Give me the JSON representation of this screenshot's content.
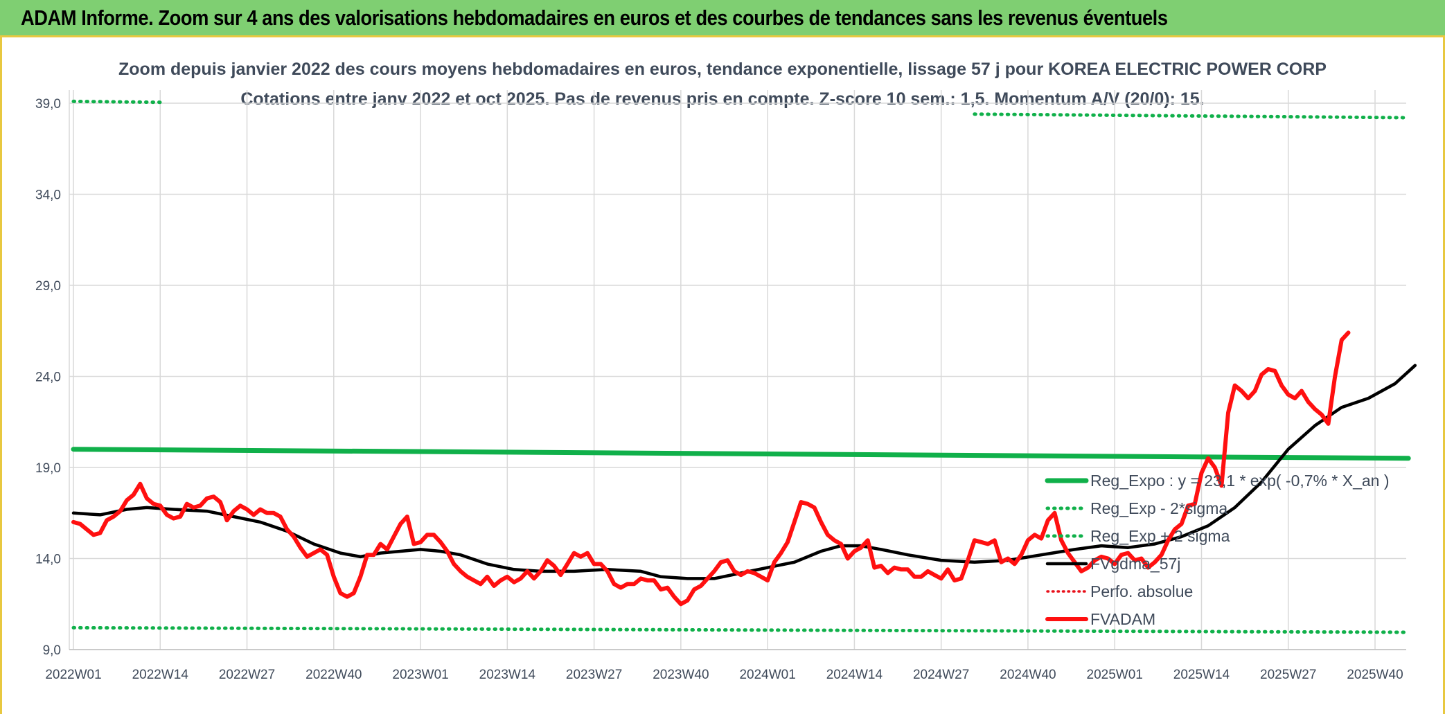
{
  "banner": {
    "title": "ADAM Informe. Zoom sur 4 ans des valorisations hebdomadaires en euros et des courbes de tendances sans les revenus éventuels"
  },
  "colors": {
    "banner_bg": "#7fcf72",
    "reg_expo": "#10b04a",
    "sigma": "#10b04a",
    "fvgdma": "#000000",
    "perfo": "#e8101a",
    "fvadam": "#ff1010"
  },
  "chart_data": {
    "type": "line",
    "title": "Zoom depuis janvier 2022 des cours moyens hebdomadaires en euros, tendance exponentielle, lissage 57 j pour KOREA ELECTRIC POWER CORP",
    "subtitle": "Cotations entre janv 2022 et oct 2025. Pas de revenus pris en compte. Z-score 10 sem.: 1,5. Momentum A/V (20/0): 15.",
    "xlabel": "",
    "ylabel": "",
    "ylim": [
      9.0,
      40.0
    ],
    "yticks": [
      "9,0",
      "14,0",
      "19,0",
      "24,0",
      "29,0",
      "34,0",
      "39,0"
    ],
    "yticks_values": [
      9,
      14,
      19,
      24,
      29,
      34,
      39
    ],
    "xticks": [
      "2022W01",
      "2022W14",
      "2022W27",
      "2022W40",
      "2023W01",
      "2023W14",
      "2023W27",
      "2023W40",
      "2024W01",
      "2024W14",
      "2024W27",
      "2024W40",
      "2025W01",
      "2025W14",
      "2025W27",
      "2025W40"
    ],
    "xticks_index": [
      0,
      13,
      26,
      39,
      52,
      65,
      78,
      91,
      104,
      117,
      130,
      143,
      156,
      169,
      182,
      195
    ],
    "n_weeks": 201,
    "grid": true,
    "legend_position": "bottom-right",
    "series": [
      {
        "name": "Reg_Expo : y = 23,1 * exp( -0,7% *  X_an )",
        "style": "solid-thick",
        "points": [
          [
            0,
            20.0
          ],
          [
            200,
            19.5
          ]
        ]
      },
      {
        "name": "Reg_Exp - 2*sigma",
        "style": "dotted",
        "points": [
          [
            0,
            10.2
          ],
          [
            200,
            9.95
          ]
        ]
      },
      {
        "name": "Reg_Exp + 2 sigma",
        "style": "dotted",
        "segments": [
          [
            [
              0,
              39.1
            ],
            [
              13,
              39.05
            ]
          ],
          [
            [
              135,
              38.4
            ],
            [
              200,
              38.2
            ]
          ]
        ]
      },
      {
        "name": "FVgdma_57j",
        "style": "solid",
        "points": [
          [
            0,
            16.5
          ],
          [
            4,
            16.4
          ],
          [
            8,
            16.7
          ],
          [
            11,
            16.8
          ],
          [
            15,
            16.7
          ],
          [
            20,
            16.6
          ],
          [
            24,
            16.3
          ],
          [
            28,
            16.0
          ],
          [
            32,
            15.5
          ],
          [
            36,
            14.8
          ],
          [
            40,
            14.3
          ],
          [
            43,
            14.1
          ],
          [
            46,
            14.3
          ],
          [
            52,
            14.5
          ],
          [
            55,
            14.4
          ],
          [
            58,
            14.2
          ],
          [
            62,
            13.7
          ],
          [
            66,
            13.4
          ],
          [
            70,
            13.3
          ],
          [
            75,
            13.3
          ],
          [
            80,
            13.4
          ],
          [
            85,
            13.3
          ],
          [
            88,
            13.0
          ],
          [
            92,
            12.9
          ],
          [
            96,
            12.9
          ],
          [
            100,
            13.2
          ],
          [
            104,
            13.5
          ],
          [
            108,
            13.8
          ],
          [
            112,
            14.4
          ],
          [
            115,
            14.7
          ],
          [
            118,
            14.7
          ],
          [
            121,
            14.5
          ],
          [
            125,
            14.2
          ],
          [
            130,
            13.9
          ],
          [
            135,
            13.8
          ],
          [
            140,
            13.9
          ],
          [
            145,
            14.2
          ],
          [
            150,
            14.5
          ],
          [
            154,
            14.7
          ],
          [
            158,
            14.6
          ],
          [
            162,
            14.8
          ],
          [
            166,
            15.2
          ],
          [
            170,
            15.8
          ],
          [
            174,
            16.8
          ],
          [
            178,
            18.2
          ],
          [
            182,
            20.0
          ],
          [
            186,
            21.3
          ],
          [
            190,
            22.3
          ],
          [
            194,
            22.8
          ],
          [
            198,
            23.6
          ],
          [
            201,
            24.6
          ]
        ]
      },
      {
        "name": "Perfo. absolue",
        "style": "dotted",
        "points": []
      },
      {
        "name": "FVADAM",
        "style": "solid-thick",
        "points": [
          [
            0,
            16.0
          ],
          [
            1,
            15.9
          ],
          [
            2,
            15.6
          ],
          [
            3,
            15.3
          ],
          [
            4,
            15.4
          ],
          [
            5,
            16.1
          ],
          [
            6,
            16.3
          ],
          [
            7,
            16.6
          ],
          [
            8,
            17.2
          ],
          [
            9,
            17.5
          ],
          [
            10,
            18.1
          ],
          [
            11,
            17.3
          ],
          [
            12,
            17.0
          ],
          [
            13,
            16.9
          ],
          [
            14,
            16.4
          ],
          [
            15,
            16.2
          ],
          [
            16,
            16.3
          ],
          [
            17,
            17.0
          ],
          [
            18,
            16.8
          ],
          [
            19,
            16.9
          ],
          [
            20,
            17.3
          ],
          [
            21,
            17.4
          ],
          [
            22,
            17.1
          ],
          [
            23,
            16.1
          ],
          [
            24,
            16.6
          ],
          [
            25,
            16.9
          ],
          [
            26,
            16.7
          ],
          [
            27,
            16.4
          ],
          [
            28,
            16.7
          ],
          [
            29,
            16.5
          ],
          [
            30,
            16.5
          ],
          [
            31,
            16.3
          ],
          [
            32,
            15.6
          ],
          [
            33,
            15.2
          ],
          [
            34,
            14.6
          ],
          [
            35,
            14.1
          ],
          [
            36,
            14.3
          ],
          [
            37,
            14.5
          ],
          [
            38,
            14.2
          ],
          [
            39,
            13.0
          ],
          [
            40,
            12.1
          ],
          [
            41,
            11.9
          ],
          [
            42,
            12.1
          ],
          [
            43,
            13.0
          ],
          [
            44,
            14.2
          ],
          [
            45,
            14.2
          ],
          [
            46,
            14.8
          ],
          [
            47,
            14.5
          ],
          [
            48,
            15.2
          ],
          [
            49,
            15.9
          ],
          [
            50,
            16.3
          ],
          [
            51,
            14.8
          ],
          [
            52,
            14.9
          ],
          [
            53,
            15.3
          ],
          [
            54,
            15.3
          ],
          [
            55,
            14.9
          ],
          [
            56,
            14.4
          ],
          [
            57,
            13.7
          ],
          [
            58,
            13.3
          ],
          [
            59,
            13.0
          ],
          [
            60,
            12.8
          ],
          [
            61,
            12.6
          ],
          [
            62,
            13.0
          ],
          [
            63,
            12.5
          ],
          [
            64,
            12.8
          ],
          [
            65,
            13.0
          ],
          [
            66,
            12.7
          ],
          [
            67,
            12.9
          ],
          [
            68,
            13.3
          ],
          [
            69,
            12.9
          ],
          [
            70,
            13.3
          ],
          [
            71,
            13.9
          ],
          [
            72,
            13.6
          ],
          [
            73,
            13.1
          ],
          [
            74,
            13.7
          ],
          [
            75,
            14.3
          ],
          [
            76,
            14.1
          ],
          [
            77,
            14.3
          ],
          [
            78,
            13.7
          ],
          [
            79,
            13.7
          ],
          [
            80,
            13.3
          ],
          [
            81,
            12.6
          ],
          [
            82,
            12.4
          ],
          [
            83,
            12.6
          ],
          [
            84,
            12.6
          ],
          [
            85,
            12.9
          ],
          [
            86,
            12.8
          ],
          [
            87,
            12.8
          ],
          [
            88,
            12.3
          ],
          [
            89,
            12.4
          ],
          [
            90,
            11.9
          ],
          [
            91,
            11.5
          ],
          [
            92,
            11.7
          ],
          [
            93,
            12.3
          ],
          [
            94,
            12.5
          ],
          [
            95,
            12.9
          ],
          [
            96,
            13.3
          ],
          [
            97,
            13.8
          ],
          [
            98,
            13.9
          ],
          [
            99,
            13.3
          ],
          [
            100,
            13.1
          ],
          [
            101,
            13.3
          ],
          [
            102,
            13.2
          ],
          [
            103,
            13.0
          ],
          [
            104,
            12.8
          ],
          [
            105,
            13.8
          ],
          [
            106,
            14.3
          ],
          [
            107,
            14.9
          ],
          [
            108,
            16.0
          ],
          [
            109,
            17.1
          ],
          [
            110,
            17.0
          ],
          [
            111,
            16.8
          ],
          [
            112,
            16.0
          ],
          [
            113,
            15.3
          ],
          [
            114,
            15.0
          ],
          [
            115,
            14.8
          ],
          [
            116,
            14.0
          ],
          [
            117,
            14.4
          ],
          [
            118,
            14.6
          ],
          [
            119,
            15.0
          ],
          [
            120,
            13.5
          ],
          [
            121,
            13.6
          ],
          [
            122,
            13.2
          ],
          [
            123,
            13.5
          ],
          [
            124,
            13.4
          ],
          [
            125,
            13.4
          ],
          [
            126,
            13.0
          ],
          [
            127,
            13.0
          ],
          [
            128,
            13.3
          ],
          [
            129,
            13.1
          ],
          [
            130,
            12.9
          ],
          [
            131,
            13.4
          ],
          [
            132,
            12.8
          ],
          [
            133,
            12.9
          ],
          [
            134,
            13.9
          ],
          [
            135,
            15.0
          ],
          [
            136,
            14.9
          ],
          [
            137,
            14.8
          ],
          [
            138,
            15.0
          ],
          [
            139,
            13.8
          ],
          [
            140,
            14.0
          ],
          [
            141,
            13.7
          ],
          [
            142,
            14.2
          ],
          [
            143,
            15.0
          ],
          [
            144,
            15.3
          ],
          [
            145,
            15.1
          ],
          [
            146,
            16.1
          ],
          [
            147,
            16.5
          ],
          [
            148,
            15.0
          ],
          [
            149,
            14.3
          ],
          [
            150,
            13.8
          ],
          [
            151,
            13.3
          ],
          [
            152,
            13.5
          ],
          [
            153,
            13.9
          ],
          [
            154,
            14.1
          ],
          [
            155,
            14.0
          ],
          [
            156,
            13.7
          ],
          [
            157,
            14.2
          ],
          [
            158,
            14.3
          ],
          [
            159,
            13.9
          ],
          [
            160,
            14.0
          ],
          [
            161,
            13.5
          ],
          [
            162,
            13.8
          ],
          [
            163,
            14.2
          ],
          [
            164,
            15.0
          ],
          [
            165,
            15.6
          ],
          [
            166,
            15.9
          ],
          [
            167,
            16.9
          ],
          [
            168,
            17.0
          ],
          [
            169,
            18.7
          ],
          [
            170,
            19.5
          ],
          [
            171,
            19.0
          ],
          [
            172,
            18.0
          ],
          [
            173,
            22.0
          ],
          [
            174,
            23.5
          ],
          [
            175,
            23.2
          ],
          [
            176,
            22.8
          ],
          [
            177,
            23.2
          ],
          [
            178,
            24.1
          ],
          [
            179,
            24.4
          ],
          [
            180,
            24.3
          ],
          [
            181,
            23.5
          ],
          [
            182,
            23.0
          ],
          [
            183,
            22.8
          ],
          [
            184,
            23.2
          ],
          [
            185,
            22.6
          ],
          [
            186,
            22.2
          ],
          [
            187,
            21.9
          ],
          [
            188,
            21.4
          ],
          [
            189,
            24.0
          ],
          [
            190,
            26.0
          ],
          [
            191,
            26.4
          ]
        ]
      }
    ]
  }
}
